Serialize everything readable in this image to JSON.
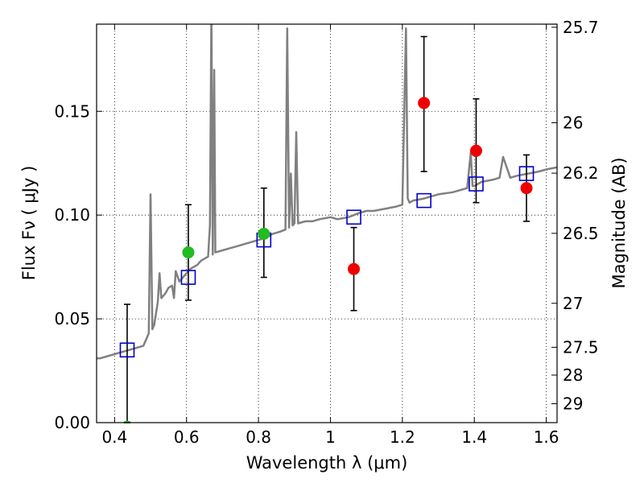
{
  "chart_data": {
    "type": "scatter",
    "xlabel": "Wavelength  λ (μm)",
    "ylabel": "Flux  Fν  ( μJy )",
    "y2label": "Magnitude (AB)",
    "xlim": [
      0.35,
      1.63
    ],
    "ylim": [
      0.0,
      0.192
    ],
    "x_ticks": [
      {
        "value": 0.4,
        "label": "0.4"
      },
      {
        "value": 0.6,
        "label": "0.6"
      },
      {
        "value": 0.8,
        "label": "0.8"
      },
      {
        "value": 1.0,
        "label": "1"
      },
      {
        "value": 1.2,
        "label": "1.2"
      },
      {
        "value": 1.4,
        "label": "1.4"
      },
      {
        "value": 1.6,
        "label": "1.6"
      }
    ],
    "y_ticks": [
      {
        "value": 0.0,
        "label": "0.00"
      },
      {
        "value": 0.05,
        "label": "0.05"
      },
      {
        "value": 0.1,
        "label": "0.10"
      },
      {
        "value": 0.15,
        "label": "0.15"
      }
    ],
    "y2_ticks": [
      {
        "label": "25.7",
        "flux": 0.1905
      },
      {
        "label": "26",
        "flux": 0.1445
      },
      {
        "label": "26.2",
        "flux": 0.1202
      },
      {
        "label": "26.5",
        "flux": 0.0912
      },
      {
        "label": "27",
        "flux": 0.0575
      },
      {
        "label": "27.5",
        "flux": 0.0363
      },
      {
        "label": "28",
        "flux": 0.0229
      },
      {
        "label": "29",
        "flux": 0.0091
      }
    ],
    "grid": true,
    "colors": {
      "model": "#808080",
      "model_photometry": "#0000cc",
      "optical_detections": "#22bb22",
      "nir_detections": "#ee0000",
      "errorbars": "#000000"
    },
    "series": [
      {
        "type": "line",
        "x": [
          0.35,
          0.36,
          0.38,
          0.4,
          0.42,
          0.44,
          0.46,
          0.48,
          0.495,
          0.5,
          0.505,
          0.51,
          0.52,
          0.525,
          0.53,
          0.54,
          0.55,
          0.56,
          0.565,
          0.57,
          0.58,
          0.59,
          0.6,
          0.61,
          0.62,
          0.63,
          0.64,
          0.65,
          0.66,
          0.665,
          0.669,
          0.673,
          0.677,
          0.68,
          0.7,
          0.72,
          0.74,
          0.76,
          0.78,
          0.8,
          0.82,
          0.84,
          0.86,
          0.875,
          0.88,
          0.885,
          0.89,
          0.895,
          0.9,
          0.905,
          0.91,
          0.93,
          0.95,
          0.97,
          1.0,
          1.02,
          1.05,
          1.08,
          1.1,
          1.12,
          1.15,
          1.18,
          1.2,
          1.21,
          1.215,
          1.22,
          1.23,
          1.26,
          1.3,
          1.34,
          1.38,
          1.39,
          1.395,
          1.4,
          1.42,
          1.45,
          1.47,
          1.48,
          1.5,
          1.52,
          1.55,
          1.58,
          1.6,
          1.63
        ],
        "y": [
          0.031,
          0.031,
          0.032,
          0.033,
          0.034,
          0.035,
          0.036,
          0.037,
          0.043,
          0.11,
          0.045,
          0.047,
          0.058,
          0.072,
          0.06,
          0.062,
          0.065,
          0.066,
          0.06,
          0.073,
          0.068,
          0.07,
          0.072,
          0.074,
          0.075,
          0.076,
          0.078,
          0.079,
          0.08,
          0.095,
          0.2,
          0.081,
          0.17,
          0.082,
          0.083,
          0.084,
          0.085,
          0.086,
          0.087,
          0.088,
          0.089,
          0.091,
          0.092,
          0.093,
          0.19,
          0.094,
          0.12,
          0.095,
          0.096,
          0.14,
          0.096,
          0.097,
          0.097,
          0.098,
          0.099,
          0.098,
          0.099,
          0.101,
          0.102,
          0.102,
          0.103,
          0.104,
          0.105,
          0.19,
          0.108,
          0.106,
          0.107,
          0.108,
          0.11,
          0.111,
          0.113,
          0.13,
          0.114,
          0.114,
          0.116,
          0.117,
          0.118,
          0.128,
          0.118,
          0.119,
          0.12,
          0.121,
          0.122,
          0.123
        ]
      },
      {
        "type": "scatter",
        "marker": "open-square",
        "x": [
          0.435,
          0.605,
          0.815,
          1.065,
          1.26,
          1.405,
          1.545
        ],
        "y": [
          0.035,
          0.07,
          0.088,
          0.099,
          0.107,
          0.115,
          0.12
        ]
      },
      {
        "type": "scatter",
        "marker": "filled-circle",
        "x": [
          0.435,
          0.605,
          0.815
        ],
        "y": [
          -0.002,
          0.082,
          0.091
        ],
        "yerr_low": [
          0.0,
          0.059,
          0.07
        ],
        "yerr_high": [
          0.057,
          0.105,
          0.113
        ]
      },
      {
        "type": "scatter",
        "marker": "filled-circle",
        "x": [
          1.065,
          1.26,
          1.405,
          1.545
        ],
        "y": [
          0.074,
          0.154,
          0.131,
          0.113
        ],
        "yerr_low": [
          0.054,
          0.121,
          0.106,
          0.097
        ],
        "yerr_high": [
          0.094,
          0.186,
          0.156,
          0.129
        ]
      }
    ]
  }
}
